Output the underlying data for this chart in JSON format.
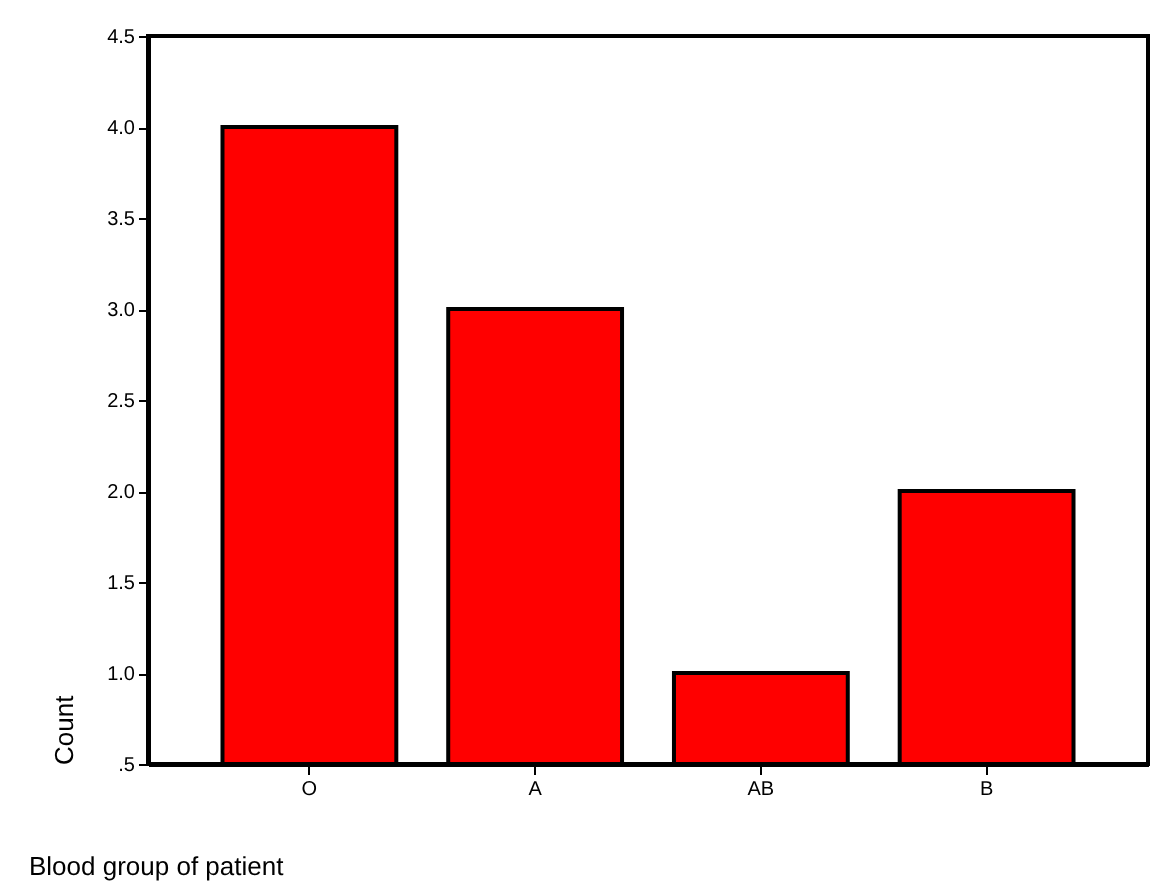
{
  "chart_data": {
    "type": "bar",
    "xlabel": "Blood group of patient",
    "ylabel": "Count",
    "categories": [
      "O",
      "A",
      "AB",
      "B"
    ],
    "values": [
      4,
      3,
      1,
      2
    ],
    "color": "#ff0000",
    "ylim": [
      0.5,
      4.5
    ],
    "yticks": [
      {
        "value": 0.5,
        "label": ".5"
      },
      {
        "value": 1,
        "label": "1.0"
      },
      {
        "value": 1.5,
        "label": "1.5"
      },
      {
        "value": 2,
        "label": "2.0"
      },
      {
        "value": 2.5,
        "label": "2.5"
      },
      {
        "value": 3,
        "label": "3.0"
      },
      {
        "value": 3.5,
        "label": "3.5"
      },
      {
        "value": 4,
        "label": "4.0"
      },
      {
        "value": 4.5,
        "label": "4.5"
      }
    ],
    "grid": false
  }
}
